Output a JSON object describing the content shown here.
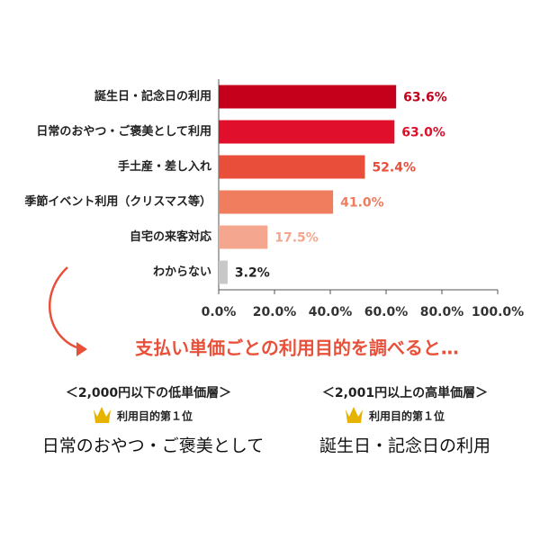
{
  "chart_data": {
    "type": "bar",
    "orientation": "horizontal",
    "categories": [
      "誕生日・記念日の利用",
      "日常のおやつ・ご褒美として利用",
      "手土産・差し入れ",
      "季節イベント利用（クリスマス等）",
      "自宅の来客対応",
      "わからない"
    ],
    "values": [
      63.6,
      63.0,
      52.4,
      41.0,
      17.5,
      3.2
    ],
    "value_labels": [
      "63.6%",
      "63.0%",
      "52.4%",
      "41.0%",
      "17.5%",
      "3.2%"
    ],
    "colors": [
      "#c4001a",
      "#e0102c",
      "#e84e3a",
      "#ef7d5e",
      "#f4a78e",
      "#c8c8c8"
    ],
    "label_colors": [
      "#c4001a",
      "#e0102c",
      "#e84e3a",
      "#ef7d5e",
      "#f4a78e",
      "#222222"
    ],
    "xlim": [
      0,
      100
    ],
    "xticks": [
      {
        "value": 0,
        "label": "0.0%"
      },
      {
        "value": 20,
        "label": "20.0%"
      },
      {
        "value": 40,
        "label": "40.0%"
      },
      {
        "value": 60,
        "label": "60.0%"
      },
      {
        "value": 80,
        "label": "80.0%"
      },
      {
        "value": 100,
        "label": "100.0%"
      }
    ]
  },
  "annotation": {
    "heading": "支払い単価ごとの利用目的を調べると…",
    "groups": [
      {
        "segment": "＜2,000円以下の低単価層＞",
        "rank": "利用目的第１位",
        "answer": "日常のおやつ・ご褒美として"
      },
      {
        "segment": "＜2,001円以上の高単価層＞",
        "rank": "利用目的第１位",
        "answer": "誕生日・記念日の利用"
      }
    ]
  }
}
